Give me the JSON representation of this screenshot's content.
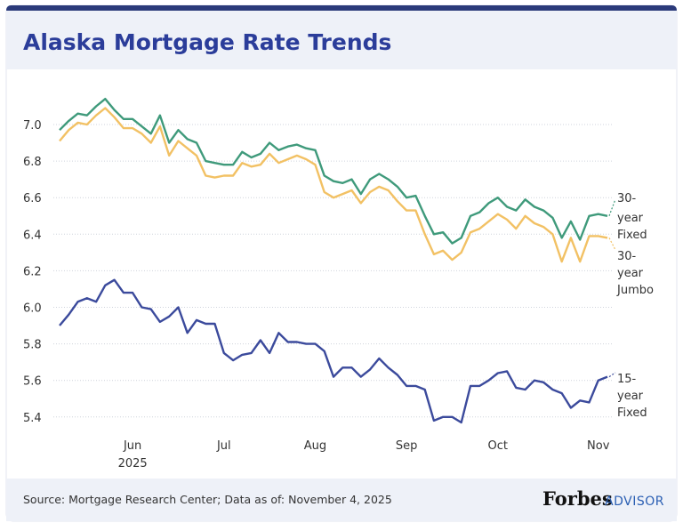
{
  "chart_data": {
    "type": "line",
    "title": "Alaska Mortgage Rate Trends",
    "categories": [
      null,
      null,
      null,
      null,
      null,
      null,
      null,
      null,
      "Jun",
      null,
      null,
      null,
      null,
      null,
      null,
      null,
      null,
      null,
      "Jul",
      null,
      null,
      null,
      null,
      null,
      null,
      null,
      null,
      null,
      "Aug",
      null,
      null,
      null,
      null,
      null,
      null,
      null,
      null,
      null,
      "Sep",
      null,
      null,
      null,
      null,
      null,
      null,
      null,
      null,
      null,
      "Oct",
      null,
      null,
      null,
      null,
      null,
      null,
      null,
      null,
      null,
      null,
      "Nov",
      null
    ],
    "x_year": "2025",
    "series": [
      {
        "name": "30-year Fixed",
        "color": "#3f9a7b",
        "values": [
          6.97,
          7.02,
          7.06,
          7.05,
          7.1,
          7.14,
          7.08,
          7.03,
          7.03,
          6.99,
          6.95,
          7.05,
          6.9,
          6.97,
          6.92,
          6.9,
          6.8,
          6.79,
          6.78,
          6.78,
          6.85,
          6.82,
          6.84,
          6.9,
          6.86,
          6.88,
          6.89,
          6.87,
          6.86,
          6.72,
          6.69,
          6.68,
          6.7,
          6.62,
          6.7,
          6.73,
          6.7,
          6.66,
          6.6,
          6.61,
          6.5,
          6.4,
          6.41,
          6.35,
          6.38,
          6.5,
          6.52,
          6.57,
          6.6,
          6.55,
          6.53,
          6.59,
          6.55,
          6.53,
          6.49,
          6.38,
          6.47,
          6.37,
          6.5,
          6.51,
          6.5
        ]
      },
      {
        "name": "30-year Jumbo",
        "color": "#f2c164",
        "values": [
          6.91,
          6.97,
          7.01,
          7.0,
          7.05,
          7.09,
          7.04,
          6.98,
          6.98,
          6.95,
          6.9,
          6.99,
          6.83,
          6.91,
          6.87,
          6.83,
          6.72,
          6.71,
          6.72,
          6.72,
          6.79,
          6.77,
          6.78,
          6.84,
          6.79,
          6.81,
          6.83,
          6.81,
          6.78,
          6.63,
          6.6,
          6.62,
          6.64,
          6.57,
          6.63,
          6.66,
          6.64,
          6.58,
          6.53,
          6.53,
          6.4,
          6.29,
          6.31,
          6.26,
          6.3,
          6.41,
          6.43,
          6.47,
          6.51,
          6.48,
          6.43,
          6.5,
          6.46,
          6.44,
          6.4,
          6.25,
          6.38,
          6.25,
          6.39,
          6.39,
          6.38
        ]
      },
      {
        "name": "15-year Fixed",
        "color": "#3b4a9c",
        "values": [
          5.9,
          5.96,
          6.03,
          6.05,
          6.03,
          6.12,
          6.15,
          6.08,
          6.08,
          6.0,
          5.99,
          5.92,
          5.95,
          6.0,
          5.86,
          5.93,
          5.91,
          5.91,
          5.75,
          5.71,
          5.74,
          5.75,
          5.82,
          5.75,
          5.86,
          5.81,
          5.81,
          5.8,
          5.8,
          5.76,
          5.62,
          5.67,
          5.67,
          5.62,
          5.66,
          5.72,
          5.67,
          5.63,
          5.57,
          5.57,
          5.55,
          5.38,
          5.4,
          5.4,
          5.37,
          5.57,
          5.57,
          5.6,
          5.64,
          5.65,
          5.56,
          5.55,
          5.6,
          5.59,
          5.55,
          5.53,
          5.45,
          5.49,
          5.48,
          5.6,
          5.62
        ]
      }
    ],
    "ylim": [
      5.3,
      7.2
    ],
    "yticks": [
      {
        "value": 5.4,
        "label": "5.4"
      },
      {
        "value": 5.6,
        "label": "5.6"
      },
      {
        "value": 5.8,
        "label": "5.8"
      },
      {
        "value": 6.0,
        "label": "6.0"
      },
      {
        "value": 6.2,
        "label": "6.2"
      },
      {
        "value": 6.4,
        "label": "6.4"
      },
      {
        "value": 6.6,
        "label": "6.6"
      },
      {
        "value": 6.8,
        "label": "6.8"
      },
      {
        "value": 7.0,
        "label": "7.0"
      }
    ],
    "grid": true,
    "source": "Source: Mortgage Research Center; Data as of: November 4, 2025",
    "logo": {
      "brand": "Forbes",
      "sub": "ADVISOR"
    }
  }
}
